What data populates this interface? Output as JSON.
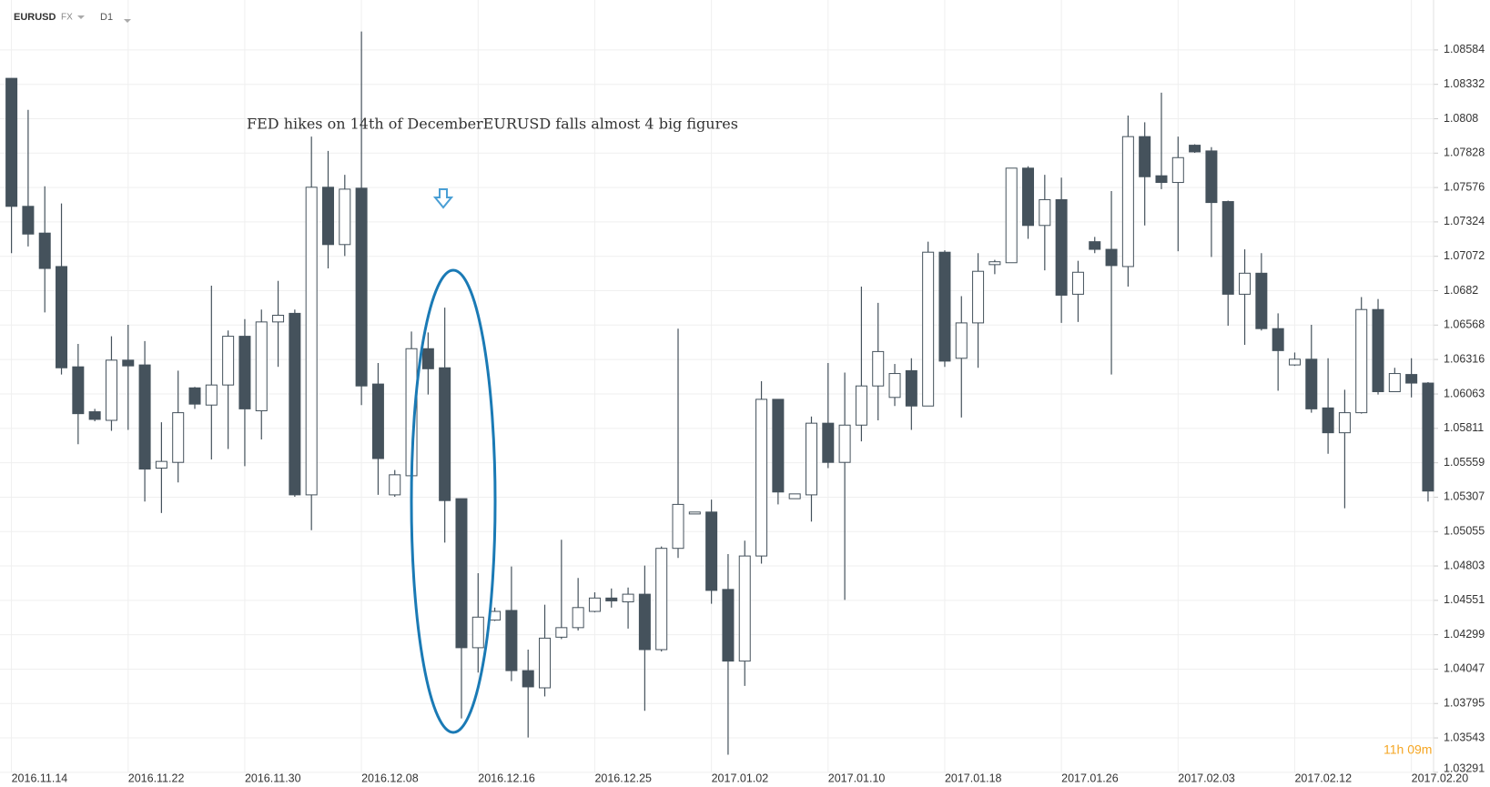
{
  "header": {
    "symbol": "EURUSD",
    "market": "FX",
    "timeframe": "D1"
  },
  "chart_data": {
    "type": "candlestick",
    "annotation": "FED hikes on 14th of DecemberEURUSD falls almost 4 big figures",
    "timer": "11h 09m",
    "up_color": "#ffffff",
    "down_color": "#45525c",
    "categories": [
      "2016.11.14",
      null,
      null,
      null,
      null,
      null,
      null,
      "2016.11.22",
      null,
      null,
      null,
      null,
      null,
      null,
      "2016.11.30",
      null,
      null,
      null,
      null,
      null,
      null,
      "2016.12.08",
      null,
      null,
      null,
      null,
      null,
      null,
      "2016.12.16",
      null,
      null,
      null,
      null,
      null,
      null,
      "2016.12.25",
      null,
      null,
      null,
      null,
      null,
      null,
      "2017.01.02",
      null,
      null,
      null,
      null,
      null,
      null,
      "2017.01.10",
      null,
      null,
      null,
      null,
      null,
      null,
      "2017.01.18",
      null,
      null,
      null,
      null,
      null,
      null,
      "2017.01.26",
      null,
      null,
      null,
      null,
      null,
      null,
      "2017.02.03",
      null,
      null,
      null,
      null,
      null,
      null,
      "2017.02.12",
      null,
      null,
      null,
      null,
      null,
      null,
      "2017.02.20",
      null
    ],
    "open": [
      1.08376,
      1.07438,
      1.07242,
      1.06997,
      1.06262,
      1.05933,
      1.0587,
      1.06311,
      1.06276,
      1.0552,
      1.05562,
      1.06108,
      1.05982,
      1.06129,
      1.06486,
      1.0594,
      1.06591,
      1.06654,
      1.05324,
      1.07578,
      1.07158,
      1.07571,
      1.06136,
      1.05324,
      1.05464,
      1.06395,
      1.06255,
      1.05296,
      1.04204,
      1.04407,
      1.04477,
      1.04036,
      1.0391,
      1.04281,
      1.04351,
      1.0447,
      1.04568,
      1.0454,
      1.04596,
      1.0419,
      1.04932,
      1.05184,
      1.05198,
      1.04631,
      1.04106,
      1.04876,
      1.06024,
      1.05296,
      1.05324,
      1.05849,
      1.05562,
      1.05835,
      1.06122,
      1.06038,
      1.06234,
      1.05975,
      1.07102,
      1.06325,
      1.06584,
      1.07011,
      1.07025,
      1.07718,
      1.07298,
      1.07487,
      1.06794,
      1.07179,
      1.07123,
      1.06997,
      1.07949,
      1.07662,
      1.07613,
      1.07886,
      1.07844,
      1.07473,
      1.06794,
      1.06948,
      1.06542,
      1.06276,
      1.06318,
      1.05961,
      1.05779,
      1.05926,
      1.06682,
      1.0608,
      1.06206,
      1.06143
    ],
    "high": [
      1.08376,
      1.08145,
      1.07585,
      1.07459,
      1.0643,
      1.05954,
      1.06486,
      1.0657,
      1.06451,
      1.05856,
      1.06234,
      1.06115,
      1.06857,
      1.06528,
      1.06612,
      1.06682,
      1.06892,
      1.06682,
      1.07949,
      1.07844,
      1.07669,
      1.08719,
      1.0629,
      1.05506,
      1.06521,
      1.06514,
      1.06696,
      1.05296,
      1.0475,
      1.04498,
      1.04799,
      1.0419,
      1.04519,
      1.04995,
      1.04715,
      1.0461,
      1.04638,
      1.04645,
      1.04806,
      1.04946,
      1.06542,
      1.05198,
      1.05289,
      1.0489,
      1.04988,
      1.06157,
      1.06024,
      1.05331,
      1.05898,
      1.0629,
      1.0622,
      1.0685,
      1.06731,
      1.06283,
      1.06325,
      1.07179,
      1.07116,
      1.0678,
      1.07095,
      1.07046,
      1.07718,
      1.07732,
      1.07669,
      1.07648,
      1.07039,
      1.07214,
      1.0755,
      1.08103,
      1.08054,
      1.08271,
      1.07949,
      1.07893,
      1.07872,
      1.0748,
      1.07123,
      1.07095,
      1.06654,
      1.06367,
      1.0657,
      1.06325,
      1.06094,
      1.06773,
      1.06759,
      1.06255,
      1.06325,
      1.0615
    ],
    "low": [
      1.07095,
      1.07144,
      1.06661,
      1.06206,
      1.05695,
      1.05863,
      1.05793,
      1.058,
      1.05275,
      1.05191,
      1.05415,
      1.05954,
      1.05583,
      1.0566,
      1.05534,
      1.0573,
      1.06262,
      1.0531,
      1.05065,
      1.06983,
      1.07074,
      1.05982,
      1.05324,
      1.0531,
      1.05464,
      1.06059,
      1.04974,
      1.03686,
      1.04022,
      1.044,
      1.03959,
      1.03546,
      1.03847,
      1.04267,
      1.0433,
      1.04463,
      1.04498,
      1.04344,
      1.03742,
      1.04176,
      1.04862,
      1.05184,
      1.04526,
      1.0342,
      1.03924,
      1.0482,
      1.05254,
      1.05296,
      1.05128,
      1.0552,
      1.04554,
      1.05716,
      1.0587,
      1.05975,
      1.058,
      1.05975,
      1.06262,
      1.05891,
      1.06255,
      1.06941,
      1.07025,
      1.072,
      1.06969,
      1.06584,
      1.06591,
      1.07095,
      1.06206,
      1.0685,
      1.07298,
      1.07564,
      1.07109,
      1.0783,
      1.07067,
      1.06563,
      1.06423,
      1.06528,
      1.06087,
      1.06269,
      1.05926,
      1.05625,
      1.05226,
      1.05919,
      1.06059,
      1.0608,
      1.06038,
      1.05275
    ],
    "close": [
      1.07438,
      1.07235,
      1.06983,
      1.06255,
      1.05919,
      1.05877,
      1.06311,
      1.06269,
      1.05513,
      1.05569,
      1.05926,
      1.05989,
      1.06129,
      1.06486,
      1.05954,
      1.06591,
      1.0664,
      1.05324,
      1.07578,
      1.07158,
      1.07564,
      1.06122,
      1.0559,
      1.05471,
      1.06395,
      1.06248,
      1.05282,
      1.04204,
      1.04428,
      1.0447,
      1.04036,
      1.03917,
      1.04274,
      1.04351,
      1.04498,
      1.04568,
      1.04547,
      1.04596,
      1.0419,
      1.04932,
      1.05254,
      1.05198,
      1.04624,
      1.04106,
      1.04876,
      1.06024,
      1.05345,
      1.05331,
      1.05849,
      1.05562,
      1.05835,
      1.06122,
      1.06374,
      1.06213,
      1.05975,
      1.07102,
      1.06304,
      1.06584,
      1.06962,
      1.07032,
      1.07718,
      1.07298,
      1.07487,
      1.06787,
      1.06955,
      1.07123,
      1.07004,
      1.07949,
      1.07655,
      1.07613,
      1.07795,
      1.07837,
      1.07466,
      1.06794,
      1.06948,
      1.06542,
      1.06381,
      1.06318,
      1.05954,
      1.05779,
      1.05926,
      1.06682,
      1.0608,
      1.06213,
      1.06143,
      1.05352
    ],
    "ylim": [
      1.0329,
      1.0895
    ],
    "yticks": [
      1.08584,
      1.08332,
      1.0808,
      1.07828,
      1.07576,
      1.07324,
      1.07072,
      1.0682,
      1.06568,
      1.06316,
      1.06063,
      1.05811,
      1.05559,
      1.05307,
      1.05055,
      1.04803,
      1.04551,
      1.04299,
      1.04047,
      1.03795,
      1.03543,
      1.03291
    ],
    "grid": true
  }
}
